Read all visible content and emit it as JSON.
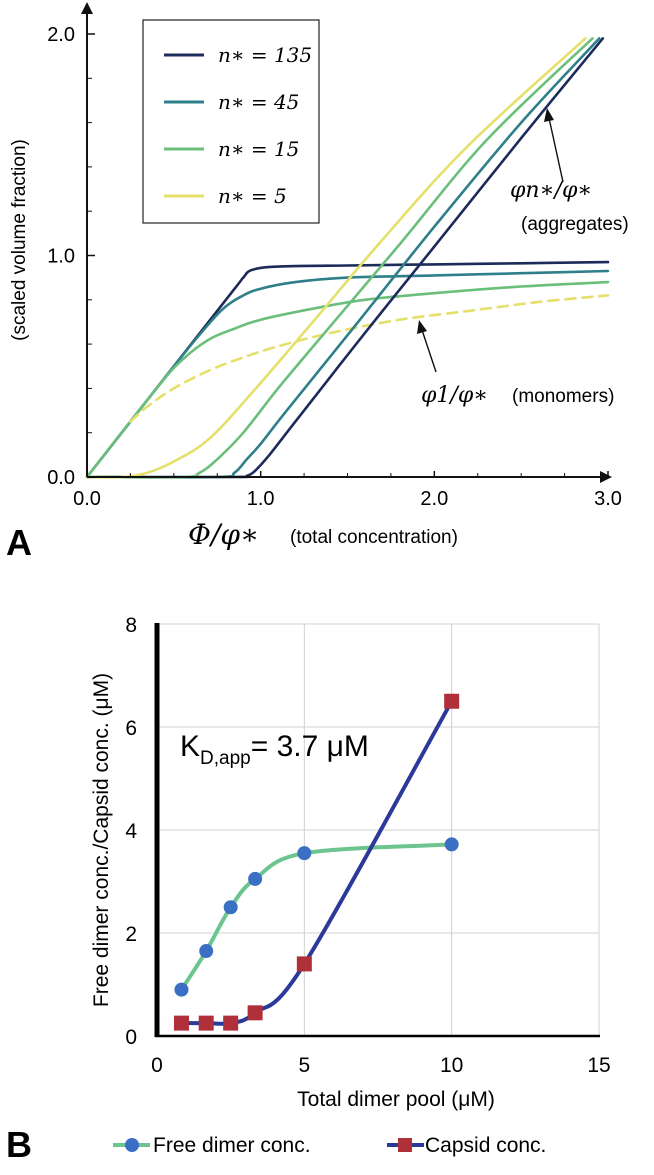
{
  "chart_data": [
    {
      "panel_label": "A",
      "type": "line",
      "xlabel_math": "Φ/φ∗",
      "xlabel_text": "(total concentration)",
      "ylabel": "(scaled volume fraction)",
      "xlim": [
        0,
        3
      ],
      "ylim": [
        0,
        2.05
      ],
      "xticks": [
        "0.0",
        "1.0",
        "2.0",
        "3.0"
      ],
      "xtick_values": [
        0,
        1,
        2,
        3
      ],
      "yticks": [
        "0.0",
        "1.0",
        "2.0"
      ],
      "ytick_values": [
        0,
        1,
        2
      ],
      "legend": {
        "position": "top-left",
        "entries": [
          {
            "label": "n∗ = 135",
            "color": "#1c2b5a"
          },
          {
            "label": "n∗ = 45",
            "color": "#2f7f8a"
          },
          {
            "label": "n∗ = 15",
            "color": "#6abf7b"
          },
          {
            "label": "n∗ = 5",
            "color": "#e5e06a"
          }
        ]
      },
      "series": [
        {
          "name": "monomers n∗=135",
          "color": "#1c2b5a",
          "dashed": false,
          "x": [
            0,
            0.5,
            0.85,
            0.9,
            0.95,
            1.1,
            1.5,
            2.0,
            2.5,
            3.0
          ],
          "y": [
            0,
            0.5,
            0.85,
            0.9,
            0.935,
            0.95,
            0.955,
            0.96,
            0.965,
            0.97
          ]
        },
        {
          "name": "monomers n∗=45",
          "color": "#2f7f8a",
          "dashed": false,
          "x": [
            0,
            0.5,
            0.7,
            0.8,
            0.9,
            1.0,
            1.2,
            1.5,
            2.0,
            2.5,
            3.0
          ],
          "y": [
            0,
            0.5,
            0.69,
            0.77,
            0.82,
            0.85,
            0.88,
            0.9,
            0.91,
            0.92,
            0.93
          ]
        },
        {
          "name": "monomers n∗=15",
          "color": "#6abf7b",
          "dashed": false,
          "x": [
            0,
            0.4,
            0.55,
            0.7,
            0.85,
            1.0,
            1.3,
            1.6,
            2.0,
            2.5,
            3.0
          ],
          "y": [
            0,
            0.4,
            0.53,
            0.62,
            0.67,
            0.71,
            0.76,
            0.8,
            0.83,
            0.86,
            0.88
          ]
        },
        {
          "name": "monomers n∗=5",
          "color": "#e5e06a",
          "dashed": true,
          "x": [
            0.25,
            0.35,
            0.5,
            0.7,
            0.9,
            1.1,
            1.4,
            1.8,
            2.2,
            2.6,
            3.0
          ],
          "y": [
            0.25,
            0.32,
            0.4,
            0.48,
            0.54,
            0.59,
            0.65,
            0.71,
            0.75,
            0.79,
            0.82
          ]
        },
        {
          "name": "aggregates n∗=135",
          "color": "#1c2b5a",
          "dashed": false,
          "x": [
            0.0,
            0.85,
            0.92,
            0.97,
            1.05,
            1.2,
            1.6,
            2.0,
            2.5,
            2.97
          ],
          "y": [
            0,
            0,
            0.005,
            0.03,
            0.1,
            0.25,
            0.65,
            1.04,
            1.53,
            1.98
          ]
        },
        {
          "name": "aggregates n∗=45",
          "color": "#2f7f8a",
          "dashed": false,
          "x": [
            0.0,
            0.75,
            0.85,
            0.92,
            1.0,
            1.15,
            1.5,
            2.0,
            2.5,
            2.95
          ],
          "y": [
            0,
            0,
            0.02,
            0.08,
            0.15,
            0.3,
            0.64,
            1.13,
            1.6,
            1.98
          ]
        },
        {
          "name": "aggregates n∗=15",
          "color": "#6abf7b",
          "dashed": false,
          "x": [
            0.0,
            0.55,
            0.65,
            0.75,
            0.9,
            1.1,
            1.4,
            1.8,
            2.3,
            2.91
          ],
          "y": [
            0,
            0,
            0.02,
            0.08,
            0.2,
            0.4,
            0.68,
            1.05,
            1.52,
            1.98
          ]
        },
        {
          "name": "aggregates n∗=5",
          "color": "#e5e06a",
          "dashed": false,
          "x": [
            0.0,
            0.2,
            0.35,
            0.5,
            0.7,
            0.95,
            1.3,
            1.7,
            2.2,
            2.87
          ],
          "y": [
            0,
            0,
            0.02,
            0.07,
            0.17,
            0.38,
            0.7,
            1.07,
            1.5,
            1.98
          ]
        }
      ],
      "annotations": [
        {
          "math": "φn∗/φ∗",
          "text": "(aggregates)",
          "arrow_to_data": [
            2.66,
            1.62
          ]
        },
        {
          "math": "φ1/φ∗",
          "text": "(monomers)",
          "arrow_to_data": [
            1.83,
            0.71
          ]
        }
      ]
    },
    {
      "panel_label": "B",
      "type": "line",
      "xlabel": "Total dimer pool (μM)",
      "ylabel": "Free dimer conc./Capsid conc. (μM)",
      "xlim": [
        0,
        15
      ],
      "ylim": [
        0,
        8
      ],
      "xticks": [
        "0",
        "5",
        "10",
        "15"
      ],
      "xtick_values": [
        0,
        5,
        10,
        15
      ],
      "yticks": [
        "0",
        "2",
        "4",
        "6",
        "8"
      ],
      "ytick_values": [
        0,
        2,
        4,
        6,
        8
      ],
      "grid": true,
      "annotation": "KD,app= 3.7 μM",
      "annotation_main": "K",
      "annotation_sub": "D,app",
      "annotation_rest": "= 3.7 μM",
      "legend": {
        "position": "bottom",
        "entries": [
          {
            "label": "Free dimer conc.",
            "color": "#6cc48f",
            "marker_color": "#3a6fc4",
            "marker": "circle"
          },
          {
            "label": "Capsid conc.",
            "color": "#2b3a9a",
            "marker_color": "#b0303a",
            "marker": "square"
          }
        ]
      },
      "series": [
        {
          "name": "Free dimer conc.",
          "color": "#6cc48f",
          "marker": "circle",
          "marker_color": "#3a6fc4",
          "x": [
            0.83,
            1.67,
            2.5,
            3.33,
            5,
            10
          ],
          "y": [
            0.9,
            1.65,
            2.5,
            3.05,
            3.55,
            3.72
          ]
        },
        {
          "name": "Capsid conc.",
          "color": "#2b3a9a",
          "marker": "square",
          "marker_color": "#b0303a",
          "x": [
            0.83,
            1.67,
            2.5,
            3.33,
            5,
            10
          ],
          "y": [
            0.25,
            0.25,
            0.25,
            0.45,
            1.4,
            6.5
          ]
        }
      ]
    }
  ]
}
